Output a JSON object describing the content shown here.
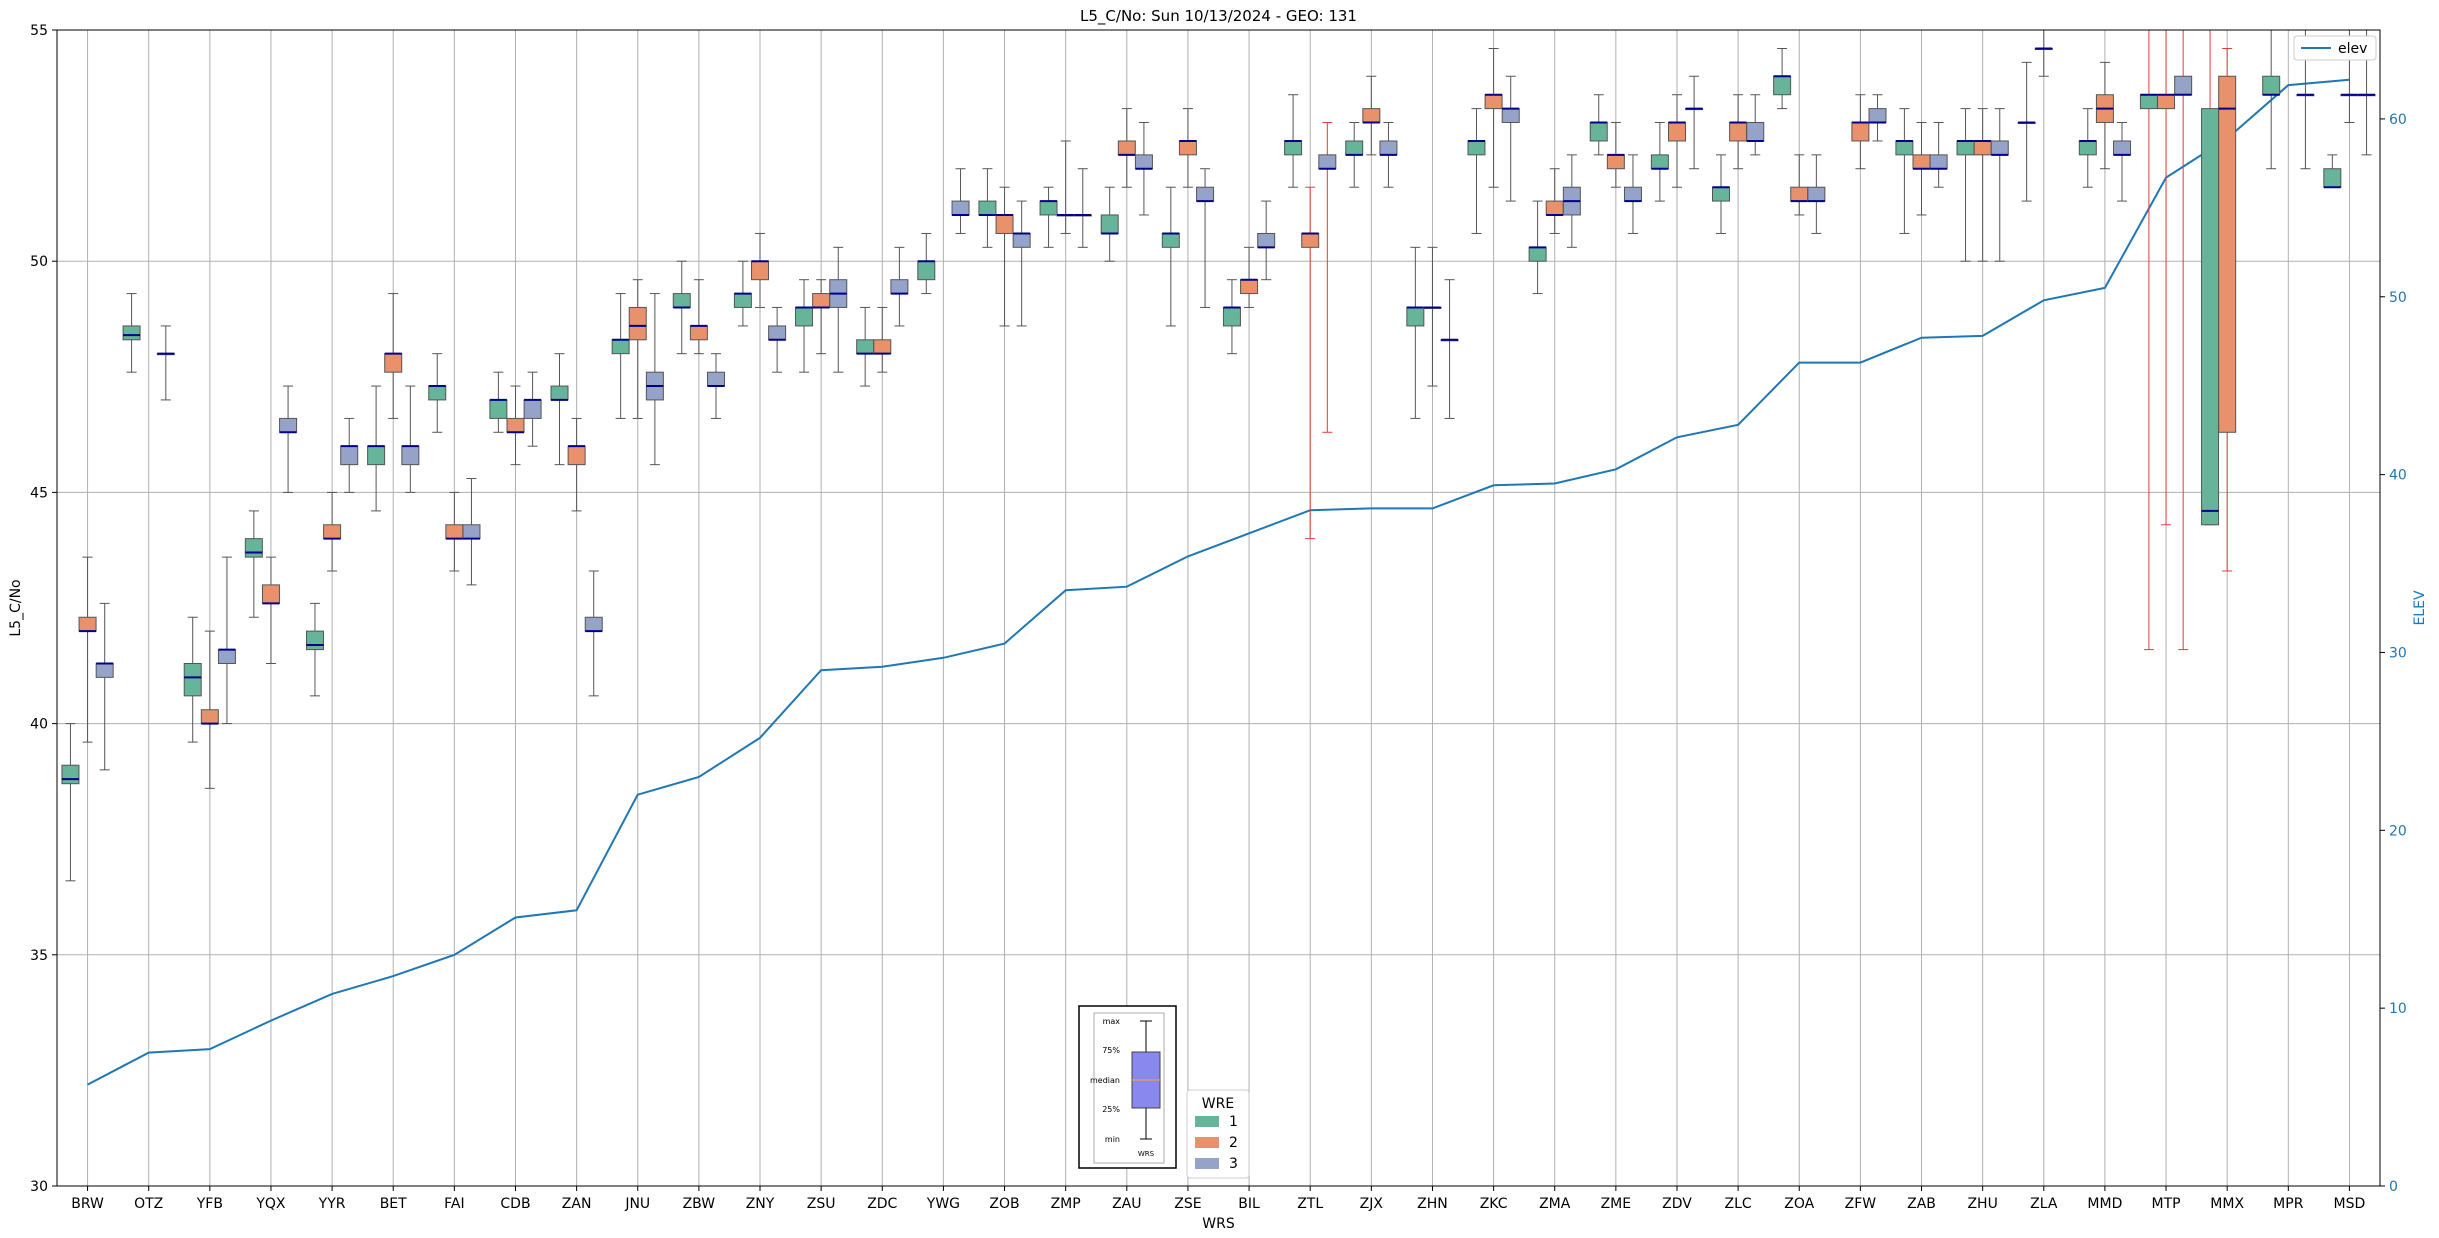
{
  "chart_data": {
    "type": "box",
    "title": "L5_C/No: Sun 10/13/2024 - GEO: 131",
    "xlabel": "WRS",
    "ylabel": "L5_C/No",
    "y2label": "ELEV",
    "ylim": [
      30,
      55
    ],
    "y2lim": [
      0,
      65
    ],
    "yticks": [
      30,
      35,
      40,
      45,
      50,
      55
    ],
    "y2ticks": [
      0,
      10,
      20,
      30,
      40,
      50,
      60
    ],
    "grid": true,
    "categories": [
      "BRW",
      "OTZ",
      "YFB",
      "YQX",
      "YYR",
      "BET",
      "FAI",
      "CDB",
      "ZAN",
      "JNU",
      "ZBW",
      "ZNY",
      "ZSU",
      "ZDC",
      "YWG",
      "ZOB",
      "ZMP",
      "ZAU",
      "ZSE",
      "BIL",
      "ZTL",
      "ZJX",
      "ZHN",
      "ZKC",
      "ZMA",
      "ZME",
      "ZDV",
      "ZLC",
      "ZOA",
      "ZFW",
      "ZAB",
      "ZHU",
      "ZLA",
      "MMD",
      "MTP",
      "MMX",
      "MPR",
      "MSD"
    ],
    "elev_line": {
      "name": "elev",
      "color": "#1f77b4",
      "values": [
        5.7,
        7.5,
        7.7,
        9.3,
        10.8,
        11.8,
        13.0,
        15.1,
        15.5,
        22.0,
        23.0,
        25.2,
        29.0,
        29.2,
        29.7,
        30.5,
        33.5,
        33.7,
        35.4,
        36.7,
        38.0,
        38.1,
        38.1,
        39.4,
        39.5,
        40.3,
        42.1,
        42.8,
        46.3,
        46.3,
        47.7,
        47.8,
        49.8,
        50.5,
        56.7,
        58.9,
        61.9,
        62.2
      ]
    },
    "legend_elev": {
      "position": "top-right",
      "label": "elev"
    },
    "legend_wre": {
      "title": "WRE",
      "position": "bottom-center",
      "entries": [
        {
          "label": "1",
          "color": "#66b49a"
        },
        {
          "label": "2",
          "color": "#e8916b"
        },
        {
          "label": "3",
          "color": "#95a3c9"
        }
      ]
    },
    "key_labels": [
      "max",
      "75%",
      "median",
      "25%",
      "min",
      "WRS"
    ],
    "key_color": "#8888ee",
    "series": [
      {
        "name": "1",
        "color": "#66b49a",
        "boxes": [
          [
            0,
            36.6,
            38.7,
            38.8,
            39.1,
            40.0
          ],
          [
            1,
            47.6,
            48.3,
            48.4,
            48.6,
            49.3
          ],
          [
            2,
            39.6,
            40.6,
            41.0,
            41.3,
            42.3
          ],
          [
            3,
            42.3,
            43.6,
            43.7,
            44.0,
            44.6
          ],
          [
            4,
            40.6,
            41.6,
            41.7,
            42.0,
            42.6
          ],
          [
            5,
            44.6,
            45.6,
            46.0,
            46.0,
            47.3
          ],
          [
            6,
            46.3,
            47.0,
            47.3,
            47.3,
            48.0
          ],
          [
            7,
            46.3,
            46.6,
            47.0,
            47.0,
            47.6
          ],
          [
            8,
            45.6,
            47.0,
            47.0,
            47.3,
            48.0
          ],
          [
            9,
            46.6,
            48.0,
            48.3,
            48.3,
            49.3
          ],
          [
            10,
            48.0,
            49.0,
            49.0,
            49.3,
            50.0
          ],
          [
            11,
            48.6,
            49.0,
            49.3,
            49.3,
            50.0
          ],
          [
            12,
            47.6,
            48.6,
            49.0,
            49.0,
            49.6
          ],
          [
            13,
            47.3,
            48.0,
            48.0,
            48.3,
            49.0
          ],
          [
            14,
            49.3,
            49.6,
            50.0,
            50.0,
            50.6
          ],
          [
            15,
            50.3,
            51.0,
            51.0,
            51.3,
            52.0
          ],
          [
            16,
            50.3,
            51.0,
            51.3,
            51.3,
            51.6
          ],
          [
            17,
            50.0,
            50.6,
            50.6,
            51.0,
            51.6
          ],
          [
            18,
            48.6,
            50.3,
            50.6,
            50.6,
            51.6
          ],
          [
            19,
            48.0,
            48.6,
            49.0,
            49.0,
            49.6
          ],
          [
            20,
            51.6,
            52.3,
            52.6,
            52.6,
            53.6
          ],
          [
            21,
            51.6,
            52.3,
            52.3,
            52.6,
            53.0
          ],
          [
            22,
            46.6,
            48.6,
            49.0,
            49.0,
            50.3
          ],
          [
            23,
            50.6,
            52.3,
            52.6,
            52.6,
            53.3
          ],
          [
            24,
            49.3,
            50.0,
            50.3,
            50.3,
            51.3
          ],
          [
            25,
            52.3,
            52.6,
            53.0,
            53.0,
            53.6
          ],
          [
            26,
            51.3,
            52.0,
            52.0,
            52.3,
            53.0
          ],
          [
            27,
            50.6,
            51.3,
            51.6,
            51.6,
            52.3
          ],
          [
            28,
            53.3,
            53.6,
            54.0,
            54.0,
            54.6
          ],
          [
            30,
            50.6,
            52.3,
            52.6,
            52.6,
            53.3
          ],
          [
            31,
            50.0,
            52.3,
            52.6,
            52.6,
            53.3
          ],
          [
            32,
            51.3,
            53.0,
            53.0,
            53.0,
            54.3
          ],
          [
            33,
            51.6,
            52.3,
            52.6,
            52.6,
            53.3
          ],
          [
            34,
            41.6,
            53.3,
            53.6,
            53.6,
            55.0
          ],
          [
            35,
            44.3,
            44.3,
            44.6,
            53.3,
            55.0
          ],
          [
            36,
            52.0,
            53.6,
            53.6,
            54.0,
            55.0
          ],
          [
            37,
            51.6,
            51.6,
            51.6,
            52.0,
            52.3
          ]
        ]
      },
      {
        "name": "2",
        "color": "#e8916b",
        "boxes": [
          [
            0,
            39.6,
            42.0,
            42.0,
            42.3,
            43.6
          ],
          [
            2,
            38.6,
            40.0,
            40.0,
            40.3,
            42.0
          ],
          [
            3,
            41.3,
            42.6,
            42.6,
            43.0,
            43.6
          ],
          [
            4,
            43.3,
            44.0,
            44.0,
            44.3,
            45.0
          ],
          [
            5,
            46.6,
            47.6,
            48.0,
            48.0,
            49.3
          ],
          [
            6,
            43.3,
            44.0,
            44.0,
            44.3,
            45.0
          ],
          [
            7,
            45.6,
            46.3,
            46.3,
            46.6,
            47.3
          ],
          [
            8,
            44.6,
            45.6,
            46.0,
            46.0,
            46.6
          ],
          [
            9,
            46.6,
            48.3,
            48.6,
            49.0,
            49.6
          ],
          [
            10,
            48.0,
            48.3,
            48.6,
            48.6,
            49.6
          ],
          [
            11,
            49.0,
            49.6,
            50.0,
            50.0,
            50.6
          ],
          [
            12,
            48.0,
            49.0,
            49.0,
            49.3,
            49.6
          ],
          [
            13,
            47.6,
            48.0,
            48.0,
            48.3,
            49.0
          ],
          [
            15,
            48.6,
            50.6,
            51.0,
            51.0,
            51.6
          ],
          [
            16,
            50.6,
            51.0,
            51.0,
            51.0,
            52.6
          ],
          [
            17,
            51.6,
            52.3,
            52.3,
            52.6,
            53.3
          ],
          [
            18,
            51.6,
            52.3,
            52.6,
            52.6,
            53.3
          ],
          [
            19,
            49.0,
            49.3,
            49.6,
            49.6,
            50.3
          ],
          [
            20,
            44.0,
            50.3,
            50.6,
            50.6,
            51.6
          ],
          [
            21,
            52.3,
            53.0,
            53.0,
            53.3,
            54.0
          ],
          [
            22,
            47.3,
            49.0,
            49.0,
            49.0,
            50.3
          ],
          [
            23,
            51.6,
            53.3,
            53.6,
            53.6,
            54.6
          ],
          [
            24,
            50.6,
            51.0,
            51.0,
            51.3,
            52.0
          ],
          [
            25,
            51.6,
            52.0,
            52.3,
            52.3,
            53.0
          ],
          [
            26,
            51.6,
            52.6,
            53.0,
            53.0,
            53.6
          ],
          [
            27,
            52.0,
            52.6,
            53.0,
            53.0,
            53.6
          ],
          [
            28,
            51.0,
            51.3,
            51.3,
            51.6,
            52.3
          ],
          [
            29,
            52.0,
            52.6,
            53.0,
            53.0,
            53.6
          ],
          [
            30,
            51.0,
            52.0,
            52.0,
            52.3,
            53.0
          ],
          [
            31,
            50.0,
            52.3,
            52.6,
            52.6,
            53.3
          ],
          [
            32,
            54.0,
            54.6,
            54.6,
            54.6,
            55.0
          ],
          [
            33,
            52.0,
            53.0,
            53.3,
            53.6,
            54.3
          ],
          [
            34,
            44.3,
            53.3,
            53.6,
            53.6,
            55.0
          ],
          [
            35,
            43.3,
            46.3,
            53.3,
            54.0,
            54.6
          ],
          [
            37,
            53.0,
            53.6,
            53.6,
            53.6,
            55.0
          ]
        ]
      },
      {
        "name": "3",
        "color": "#95a3c9",
        "boxes": [
          [
            0,
            39.0,
            41.0,
            41.3,
            41.3,
            42.6
          ],
          [
            1,
            47.0,
            48.0,
            48.0,
            48.0,
            48.6
          ],
          [
            2,
            40.0,
            41.3,
            41.6,
            41.6,
            43.6
          ],
          [
            3,
            45.0,
            46.3,
            46.3,
            46.6,
            47.3
          ],
          [
            4,
            45.0,
            45.6,
            46.0,
            46.0,
            46.6
          ],
          [
            5,
            45.0,
            45.6,
            46.0,
            46.0,
            47.3
          ],
          [
            6,
            43.0,
            44.0,
            44.0,
            44.3,
            45.3
          ],
          [
            7,
            46.0,
            46.6,
            47.0,
            47.0,
            47.6
          ],
          [
            8,
            40.6,
            42.0,
            42.0,
            42.3,
            43.3
          ],
          [
            9,
            45.6,
            47.0,
            47.3,
            47.6,
            49.3
          ],
          [
            10,
            46.6,
            47.3,
            47.3,
            47.6,
            48.0
          ],
          [
            11,
            47.6,
            48.3,
            48.3,
            48.6,
            49.0
          ],
          [
            12,
            47.6,
            49.0,
            49.3,
            49.6,
            50.3
          ],
          [
            13,
            48.6,
            49.3,
            49.3,
            49.6,
            50.3
          ],
          [
            14,
            50.6,
            51.0,
            51.0,
            51.3,
            52.0
          ],
          [
            15,
            48.6,
            50.3,
            50.6,
            50.6,
            51.3
          ],
          [
            16,
            50.3,
            51.0,
            51.0,
            51.0,
            52.0
          ],
          [
            17,
            51.0,
            52.0,
            52.0,
            52.3,
            53.0
          ],
          [
            18,
            49.0,
            51.3,
            51.3,
            51.6,
            52.0
          ],
          [
            19,
            49.6,
            50.3,
            50.3,
            50.6,
            51.3
          ],
          [
            20,
            46.3,
            52.0,
            52.0,
            52.3,
            53.0
          ],
          [
            21,
            51.6,
            52.3,
            52.3,
            52.6,
            53.0
          ],
          [
            22,
            46.6,
            48.3,
            48.3,
            48.3,
            49.6
          ],
          [
            23,
            51.3,
            53.0,
            53.3,
            53.3,
            54.0
          ],
          [
            24,
            50.3,
            51.0,
            51.3,
            51.6,
            52.3
          ],
          [
            25,
            50.6,
            51.3,
            51.3,
            51.6,
            52.3
          ],
          [
            26,
            52.0,
            53.3,
            53.3,
            53.3,
            54.0
          ],
          [
            27,
            52.3,
            52.6,
            52.6,
            53.0,
            53.6
          ],
          [
            28,
            50.6,
            51.3,
            51.3,
            51.6,
            52.3
          ],
          [
            29,
            52.6,
            53.0,
            53.0,
            53.3,
            53.6
          ],
          [
            30,
            51.6,
            52.0,
            52.0,
            52.3,
            53.0
          ],
          [
            31,
            50.0,
            52.3,
            52.3,
            52.6,
            53.3
          ],
          [
            33,
            51.3,
            52.3,
            52.3,
            52.6,
            53.0
          ],
          [
            34,
            41.6,
            53.6,
            53.6,
            54.0,
            55.0
          ],
          [
            36,
            52.0,
            53.6,
            53.6,
            53.6,
            55.0
          ],
          [
            37,
            52.3,
            53.6,
            53.6,
            53.6,
            55.0
          ]
        ]
      }
    ]
  }
}
